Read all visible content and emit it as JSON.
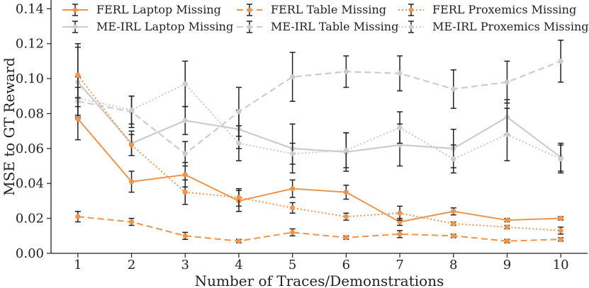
{
  "chart_data": {
    "type": "line",
    "title": "",
    "xlabel": "Number of Traces/Demonstrations",
    "ylabel": "MSE to GT Reward",
    "x": [
      1,
      2,
      3,
      4,
      5,
      6,
      7,
      8,
      9,
      10
    ],
    "xticks": [
      "1",
      "2",
      "3",
      "4",
      "5",
      "6",
      "7",
      "8",
      "9",
      "10"
    ],
    "yticks": [
      "0.00",
      "0.02",
      "0.04",
      "0.06",
      "0.08",
      "0.10",
      "0.12",
      "0.14"
    ],
    "ylim": [
      0,
      0.145
    ],
    "xlim": [
      0.5,
      10.5
    ],
    "grid": false,
    "legend_position": "top",
    "colors": {
      "ferl": "#f0944a",
      "meirl": "#cccccc",
      "errorbar": "#222222",
      "axis": "#222222"
    },
    "series": [
      {
        "name": "FERL Laptop Missing",
        "method": "FERL",
        "dash": "solid",
        "values": [
          0.077,
          0.041,
          0.045,
          0.03,
          0.037,
          0.035,
          0.018,
          0.024,
          0.019,
          0.02
        ],
        "errors": [
          0.012,
          0.006,
          0.007,
          0.006,
          0.005,
          0.004,
          0.002,
          0.002,
          0.001,
          0.001
        ]
      },
      {
        "name": "ME-IRL Laptop Missing",
        "method": "ME-IRL",
        "dash": "solid",
        "values": [
          0.098,
          0.063,
          0.076,
          0.071,
          0.06,
          0.058,
          0.062,
          0.06,
          0.078,
          0.055
        ],
        "errors": [
          0.02,
          0.007,
          0.008,
          0.011,
          0.014,
          0.011,
          0.012,
          0.011,
          0.01,
          0.008
        ]
      },
      {
        "name": "FERL Table Missing",
        "method": "FERL",
        "dash": "dashed",
        "values": [
          0.021,
          0.018,
          0.01,
          0.007,
          0.012,
          0.009,
          0.011,
          0.01,
          0.007,
          0.008
        ],
        "errors": [
          0.003,
          0.002,
          0.002,
          0.001,
          0.002,
          0.001,
          0.002,
          0.001,
          0.001,
          0.001
        ]
      },
      {
        "name": "ME-IRL Table Missing",
        "method": "ME-IRL",
        "dash": "dashed",
        "values": [
          0.087,
          0.081,
          0.057,
          0.081,
          0.101,
          0.104,
          0.103,
          0.094,
          0.098,
          0.11
        ],
        "errors": [
          0.008,
          0.009,
          0.007,
          0.014,
          0.014,
          0.009,
          0.01,
          0.011,
          0.012,
          0.012
        ]
      },
      {
        "name": "FERL Proxemics Missing",
        "method": "FERL",
        "dash": "dotted",
        "values": [
          0.102,
          0.062,
          0.035,
          0.032,
          0.026,
          0.021,
          0.023,
          0.017,
          0.015,
          0.013
        ],
        "errors": [
          0.018,
          0.006,
          0.007,
          0.005,
          0.003,
          0.002,
          0.004,
          0.001,
          0.001,
          0.002
        ]
      },
      {
        "name": "ME-IRL Proxemics Missing",
        "method": "ME-IRL",
        "dash": "dotted",
        "values": [
          0.089,
          0.082,
          0.097,
          0.063,
          0.057,
          0.059,
          0.072,
          0.054,
          0.068,
          0.054
        ],
        "errors": [
          0.012,
          0.008,
          0.013,
          0.01,
          0.006,
          0.01,
          0.009,
          0.008,
          0.015,
          0.008
        ]
      }
    ]
  }
}
